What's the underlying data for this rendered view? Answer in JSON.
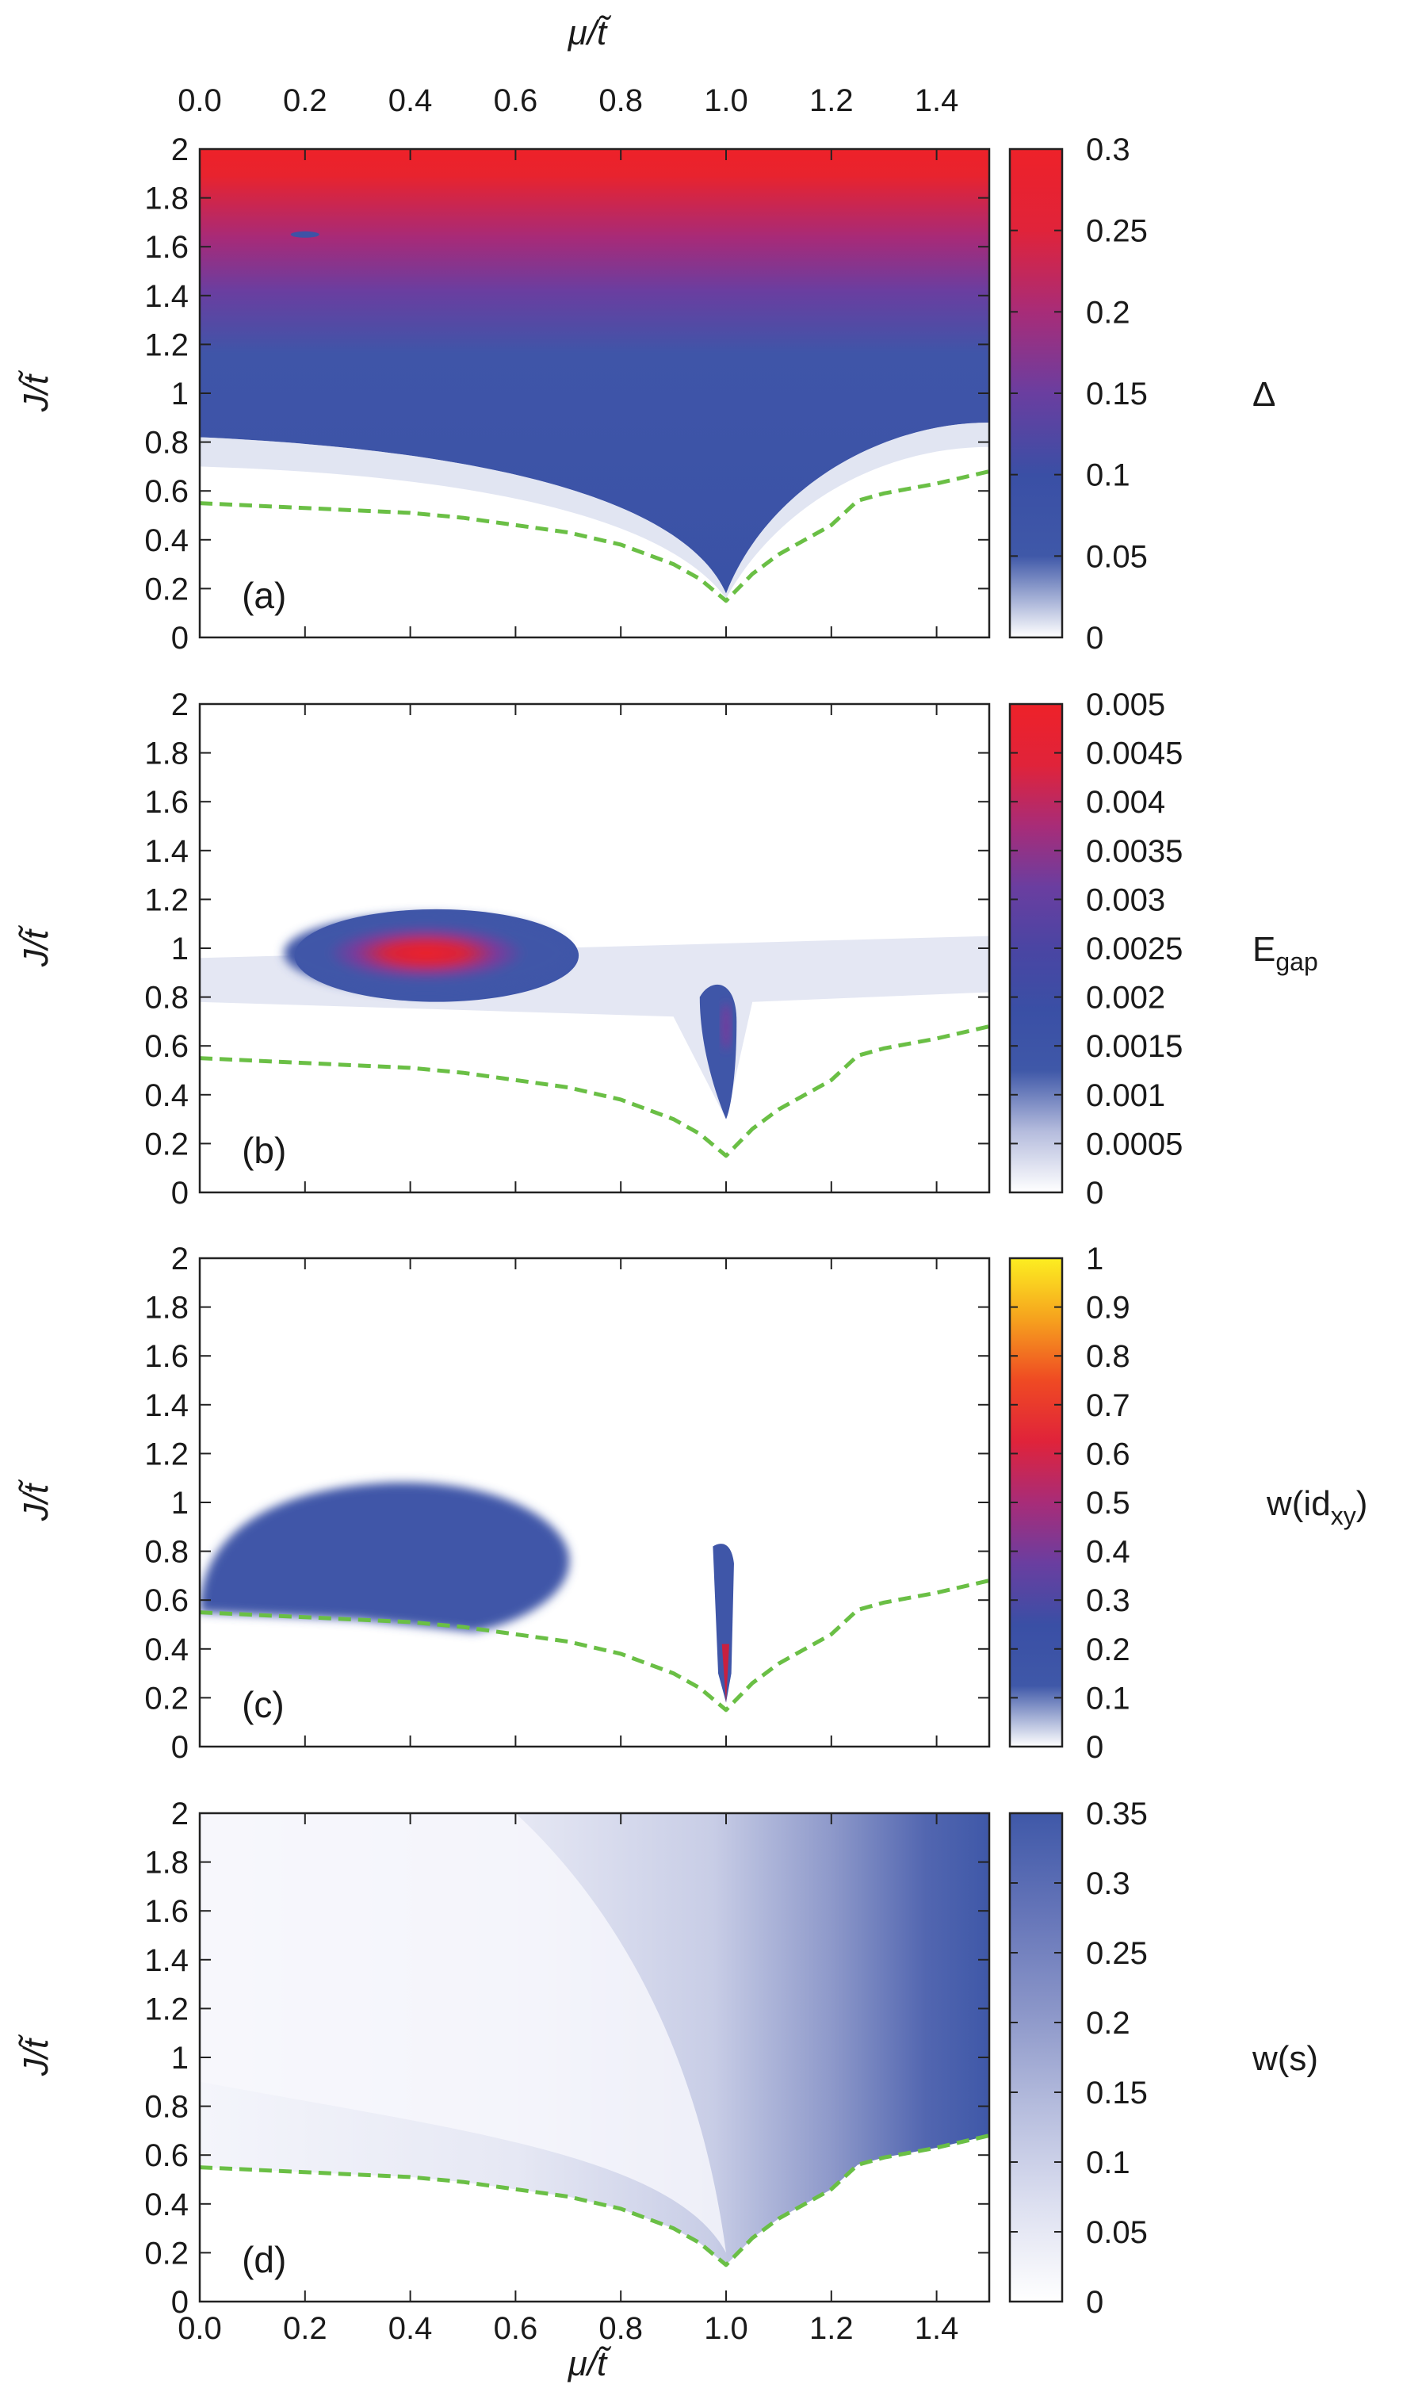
{
  "figure": {
    "top_xlabel": "μ/t̃",
    "bottom_xlabel": "μ/t̃",
    "x_ticks": [
      "0.0",
      "0.2",
      "0.4",
      "0.6",
      "0.8",
      "1.0",
      "1.2",
      "1.4"
    ],
    "y_ticks": [
      "0",
      "0.2",
      "0.4",
      "0.6",
      "0.8",
      "1",
      "1.2",
      "1.4",
      "1.6",
      "1.8",
      "2"
    ]
  },
  "chart_data": [
    {
      "type": "heatmap",
      "panel": "(a)",
      "xlabel": "μ/t̃",
      "ylabel": "J/t̃",
      "xlim": [
        0,
        1.5
      ],
      "ylim": [
        0,
        2
      ],
      "colorbar": {
        "label": "Δ",
        "range": [
          0,
          0.3
        ],
        "ticks": [
          "0",
          "0.05",
          "0.1",
          "0.15",
          "0.2",
          "0.25",
          "0.3"
        ],
        "colors": [
          "#ffffff",
          "#3f58a8",
          "#3a4fa5",
          "#6a3ea0",
          "#a82c78",
          "#e0233a",
          "#ee2229"
        ]
      },
      "phase_boundary": {
        "style": "dashed",
        "color": "#6abf45",
        "x": [
          0,
          0.1,
          0.2,
          0.3,
          0.4,
          0.5,
          0.6,
          0.7,
          0.8,
          0.9,
          0.95,
          1.0,
          1.05,
          1.1,
          1.2,
          1.25,
          1.3,
          1.4,
          1.5
        ],
        "y": [
          0.55,
          0.54,
          0.53,
          0.52,
          0.51,
          0.49,
          0.46,
          0.43,
          0.38,
          0.3,
          0.24,
          0.15,
          0.26,
          0.34,
          0.46,
          0.56,
          0.59,
          0.63,
          0.68
        ]
      }
    },
    {
      "type": "heatmap",
      "panel": "(b)",
      "xlabel": "μ/t̃",
      "ylabel": "J/t̃",
      "xlim": [
        0,
        1.5
      ],
      "ylim": [
        0,
        2
      ],
      "colorbar": {
        "label": "Egap",
        "label_main": "E",
        "label_sub": "gap",
        "range": [
          0,
          0.005
        ],
        "ticks": [
          "0",
          "0.0005",
          "0.001",
          "0.0015",
          "0.002",
          "0.0025",
          "0.003",
          "0.0035",
          "0.004",
          "0.0045",
          "0.005"
        ],
        "colors": [
          "#ffffff",
          "#b5bcdd",
          "#3f58a8",
          "#3a4fa5",
          "#4a45a3",
          "#6a3ea0",
          "#a82c78",
          "#e0233a",
          "#ee2229"
        ]
      },
      "phase_boundary": {
        "style": "dashed",
        "color": "#6abf45",
        "x": [
          0,
          0.1,
          0.2,
          0.3,
          0.4,
          0.5,
          0.6,
          0.7,
          0.8,
          0.9,
          0.95,
          1.0,
          1.05,
          1.1,
          1.2,
          1.25,
          1.3,
          1.4,
          1.5
        ],
        "y": [
          0.55,
          0.54,
          0.53,
          0.52,
          0.51,
          0.49,
          0.46,
          0.43,
          0.38,
          0.3,
          0.24,
          0.15,
          0.26,
          0.34,
          0.46,
          0.56,
          0.59,
          0.63,
          0.68
        ]
      }
    },
    {
      "type": "heatmap",
      "panel": "(c)",
      "xlabel": "μ/t̃",
      "ylabel": "J/t̃",
      "xlim": [
        0,
        1.5
      ],
      "ylim": [
        0,
        2
      ],
      "colorbar": {
        "label": "w(idxy)",
        "label_main": "w(id",
        "label_sub": "xy",
        "label_end": ")",
        "range": [
          0,
          1
        ],
        "ticks": [
          "0",
          "0.1",
          "0.2",
          "0.3",
          "0.4",
          "0.5",
          "0.6",
          "0.7",
          "0.8",
          "0.9",
          "1"
        ],
        "colors": [
          "#ffffff",
          "#3f58a8",
          "#3a4fa5",
          "#6a3ea0",
          "#a82c78",
          "#e0233a",
          "#ef4a23",
          "#f6a21e",
          "#fcee21"
        ]
      },
      "phase_boundary": {
        "style": "dashed",
        "color": "#6abf45",
        "x": [
          0,
          0.1,
          0.2,
          0.3,
          0.4,
          0.5,
          0.6,
          0.7,
          0.8,
          0.9,
          0.95,
          1.0,
          1.05,
          1.1,
          1.2,
          1.25,
          1.3,
          1.4,
          1.5
        ],
        "y": [
          0.55,
          0.54,
          0.53,
          0.52,
          0.51,
          0.49,
          0.46,
          0.43,
          0.38,
          0.3,
          0.24,
          0.15,
          0.26,
          0.34,
          0.46,
          0.56,
          0.59,
          0.63,
          0.68
        ]
      }
    },
    {
      "type": "heatmap",
      "panel": "(d)",
      "xlabel": "μ/t̃",
      "ylabel": "J/t̃",
      "xlim": [
        0,
        1.5
      ],
      "ylim": [
        0,
        2
      ],
      "colorbar": {
        "label": "w(s)",
        "range": [
          0,
          0.35
        ],
        "ticks": [
          "0",
          "0.05",
          "0.1",
          "0.15",
          "0.2",
          "0.25",
          "0.3",
          "0.35"
        ],
        "colors": [
          "#ffffff",
          "#dcdff0",
          "#b5bcdd",
          "#8a95c8",
          "#6474b8",
          "#3f58a8"
        ]
      },
      "phase_boundary": {
        "style": "dashed",
        "color": "#6abf45",
        "x": [
          0,
          0.1,
          0.2,
          0.3,
          0.4,
          0.5,
          0.6,
          0.7,
          0.8,
          0.9,
          0.95,
          1.0,
          1.05,
          1.1,
          1.2,
          1.25,
          1.3,
          1.4,
          1.5
        ],
        "y": [
          0.55,
          0.54,
          0.53,
          0.52,
          0.51,
          0.49,
          0.46,
          0.43,
          0.38,
          0.3,
          0.24,
          0.15,
          0.26,
          0.34,
          0.46,
          0.56,
          0.59,
          0.63,
          0.68
        ]
      }
    }
  ]
}
